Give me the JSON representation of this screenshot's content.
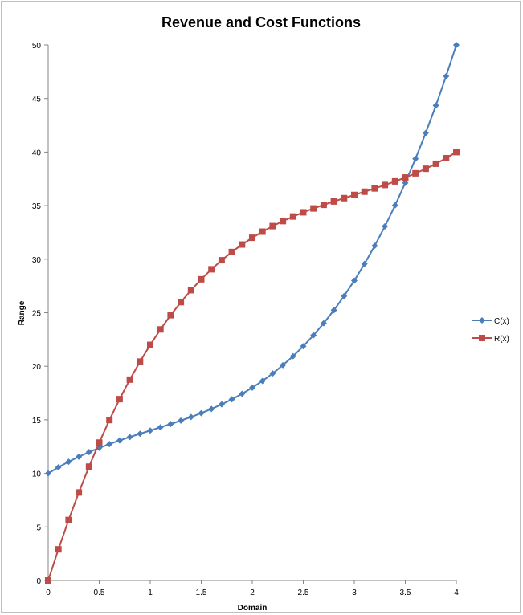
{
  "chart_data": {
    "type": "line",
    "title": "Revenue and Cost Functions",
    "xlabel": "Domain",
    "ylabel": "Range",
    "xlim": [
      0,
      4
    ],
    "ylim": [
      0,
      50
    ],
    "x_ticks": [
      "0",
      "0.5",
      "1",
      "1.5",
      "2",
      "2.5",
      "3",
      "3.5",
      "4"
    ],
    "y_ticks": [
      "0",
      "5",
      "10",
      "15",
      "20",
      "25",
      "30",
      "35",
      "40",
      "45",
      "50"
    ],
    "grid": false,
    "legend_position": "right",
    "x": [
      0,
      0.1,
      0.2,
      0.3,
      0.4,
      0.5,
      0.6,
      0.7,
      0.8,
      0.9,
      1,
      1.1,
      1.2,
      1.3,
      1.4,
      1.5,
      1.6,
      1.7,
      1.8,
      1.9,
      2,
      2.1,
      2.2,
      2.3,
      2.4,
      2.5,
      2.6,
      2.7,
      2.8,
      2.9,
      3,
      3.1,
      3.2,
      3.3,
      3.4,
      3.5,
      3.6,
      3.7,
      3.8,
      3.9,
      4
    ],
    "series": [
      {
        "name": "C(x)",
        "color": "#4a7ebb",
        "marker": "diamond",
        "values": [
          10,
          10.571,
          11.088,
          11.557,
          11.984,
          12.375,
          12.736,
          13.073,
          13.392,
          13.699,
          14,
          14.301,
          14.608,
          14.927,
          15.264,
          15.625,
          16.016,
          16.443,
          16.912,
          17.429,
          18,
          18.631,
          19.328,
          20.097,
          20.944,
          21.875,
          22.896,
          24.013,
          25.232,
          26.559,
          28,
          29.561,
          31.248,
          33.067,
          35.024,
          37.125,
          39.376,
          41.783,
          44.352,
          47.089,
          50
        ]
      },
      {
        "name": "R(x)",
        "color": "#be4b48",
        "marker": "square",
        "values": [
          0,
          2.911,
          5.648,
          8.217,
          10.624,
          12.875,
          14.976,
          16.933,
          18.752,
          20.439,
          22,
          23.441,
          24.768,
          25.987,
          27.104,
          28.125,
          29.056,
          29.903,
          30.672,
          31.369,
          32,
          32.571,
          33.088,
          33.557,
          33.984,
          34.375,
          34.736,
          35.073,
          35.392,
          35.699,
          36,
          36.301,
          36.608,
          36.927,
          37.264,
          37.625,
          38.016,
          38.443,
          38.912,
          39.429,
          40
        ]
      }
    ]
  }
}
